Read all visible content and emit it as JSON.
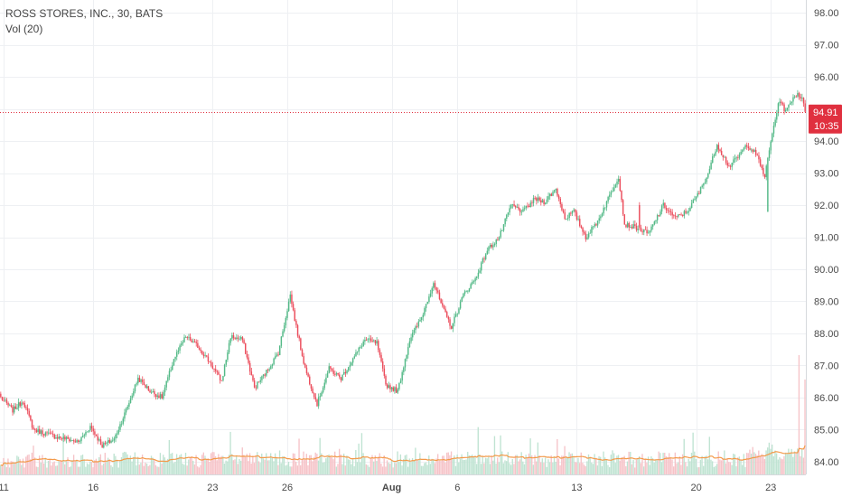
{
  "chart_data": {
    "type": "candlestick",
    "title": "ROSS STORES, INC., 30, BATS",
    "indicator": "Vol (20)",
    "y_axis_position": "right",
    "ylim": [
      83.6,
      98.4
    ],
    "y_ticks": [
      "84.00",
      "85.00",
      "86.00",
      "87.00",
      "88.00",
      "89.00",
      "90.00",
      "91.00",
      "92.00",
      "93.00",
      "94.00",
      "95.00",
      "96.00",
      "97.00",
      "98.00"
    ],
    "x_ticks": [
      {
        "label": "11",
        "bar": 2
      },
      {
        "label": "16",
        "bar": 62
      },
      {
        "label": "23",
        "bar": 142
      },
      {
        "label": "26",
        "bar": 192
      },
      {
        "label": "Aug",
        "bar": 262
      },
      {
        "label": "6",
        "bar": 306
      },
      {
        "label": "13",
        "bar": 386
      },
      {
        "label": "20",
        "bar": 466
      },
      {
        "label": "23",
        "bar": 516
      }
    ],
    "total_bars": 540,
    "last_price": "94.91",
    "last_price_value": 94.91,
    "countdown": "10:35",
    "grid": true,
    "colors": {
      "up": "#53b987",
      "down": "#eb4d5c",
      "volume_up": "#bfe3d2",
      "volume_down": "#f6c3c8",
      "volume_ma": "#f39a4a",
      "price_line": "#e0303f",
      "grid": "#eef0f3",
      "axis_text": "#4a4a4a"
    },
    "path_points": [
      [
        0,
        86.0
      ],
      [
        8,
        85.6
      ],
      [
        15,
        85.9
      ],
      [
        22,
        85.0
      ],
      [
        35,
        84.8
      ],
      [
        45,
        84.7
      ],
      [
        52,
        84.6
      ],
      [
        60,
        85.1
      ],
      [
        68,
        84.5
      ],
      [
        76,
        84.7
      ],
      [
        84,
        85.6
      ],
      [
        92,
        86.6
      ],
      [
        100,
        86.2
      ],
      [
        108,
        86.0
      ],
      [
        116,
        87.2
      ],
      [
        124,
        87.9
      ],
      [
        132,
        87.6
      ],
      [
        140,
        87.1
      ],
      [
        148,
        86.5
      ],
      [
        154,
        87.9
      ],
      [
        162,
        87.8
      ],
      [
        170,
        86.3
      ],
      [
        178,
        86.8
      ],
      [
        186,
        87.4
      ],
      [
        194,
        89.2
      ],
      [
        198,
        88.2
      ],
      [
        204,
        86.9
      ],
      [
        212,
        85.8
      ],
      [
        220,
        86.9
      ],
      [
        228,
        86.6
      ],
      [
        236,
        87.2
      ],
      [
        244,
        87.8
      ],
      [
        252,
        87.7
      ],
      [
        258,
        86.4
      ],
      [
        266,
        86.2
      ],
      [
        274,
        87.8
      ],
      [
        282,
        88.5
      ],
      [
        290,
        89.6
      ],
      [
        296,
        88.8
      ],
      [
        302,
        88.2
      ],
      [
        310,
        89.2
      ],
      [
        318,
        89.7
      ],
      [
        326,
        90.6
      ],
      [
        334,
        91.0
      ],
      [
        342,
        92.0
      ],
      [
        350,
        91.8
      ],
      [
        358,
        92.2
      ],
      [
        364,
        92.1
      ],
      [
        372,
        92.5
      ],
      [
        378,
        91.6
      ],
      [
        384,
        91.8
      ],
      [
        392,
        91.0
      ],
      [
        400,
        91.5
      ],
      [
        408,
        92.3
      ],
      [
        414,
        92.9
      ],
      [
        418,
        91.4
      ],
      [
        426,
        91.3
      ],
      [
        434,
        91.1
      ],
      [
        444,
        92.0
      ],
      [
        452,
        91.6
      ],
      [
        460,
        91.8
      ],
      [
        468,
        92.4
      ],
      [
        474,
        93.0
      ],
      [
        480,
        93.9
      ],
      [
        488,
        93.2
      ],
      [
        494,
        93.5
      ],
      [
        500,
        93.9
      ],
      [
        506,
        93.6
      ],
      [
        512,
        92.9
      ],
      [
        518,
        94.5
      ],
      [
        522,
        95.3
      ],
      [
        526,
        94.9
      ],
      [
        530,
        95.3
      ],
      [
        534,
        95.5
      ],
      [
        537,
        95.3
      ],
      [
        539,
        94.91
      ]
    ],
    "gap_points": [
      {
        "bar": 428,
        "value": 92.0
      },
      {
        "bar": 514,
        "value": 91.8
      }
    ],
    "volume_spikes": [
      {
        "bar": 535,
        "value": 0.88
      },
      {
        "bar": 539,
        "value": 0.7
      }
    ]
  }
}
